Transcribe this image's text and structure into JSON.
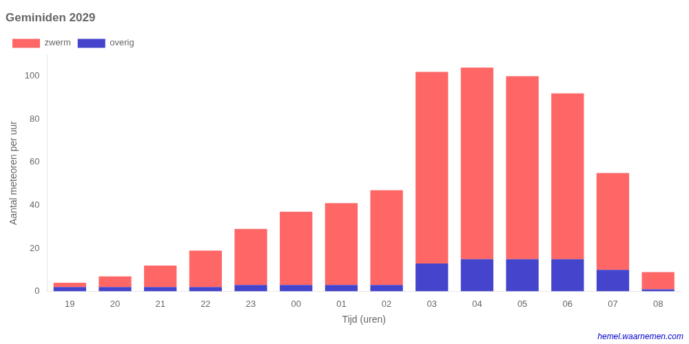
{
  "chart_data": {
    "type": "bar",
    "title": "Geminiden 2029",
    "xlabel": "Tijd (uren)",
    "ylabel": "Aantal meteoren per uur",
    "categories": [
      "19",
      "20",
      "21",
      "22",
      "23",
      "00",
      "01",
      "02",
      "03",
      "04",
      "05",
      "06",
      "07",
      "08"
    ],
    "series": [
      {
        "name": "overig",
        "color": "#4444CC",
        "values": [
          2,
          2,
          2,
          2,
          3,
          3,
          3,
          3,
          13,
          15,
          15,
          15,
          10,
          1
        ]
      },
      {
        "name": "zwerm",
        "color": "#FF6666",
        "values": [
          2,
          5,
          10,
          17,
          26,
          34,
          38,
          44,
          89,
          89,
          85,
          77,
          45,
          8
        ]
      }
    ],
    "stacked": true,
    "ylim": [
      0,
      110
    ],
    "yticks": [
      0,
      20,
      40,
      60,
      80,
      100
    ],
    "grid": false,
    "legend": "upper left",
    "annotations": [
      {
        "text": "hemel.waarnemen.com",
        "color": "#0000CC"
      }
    ]
  }
}
